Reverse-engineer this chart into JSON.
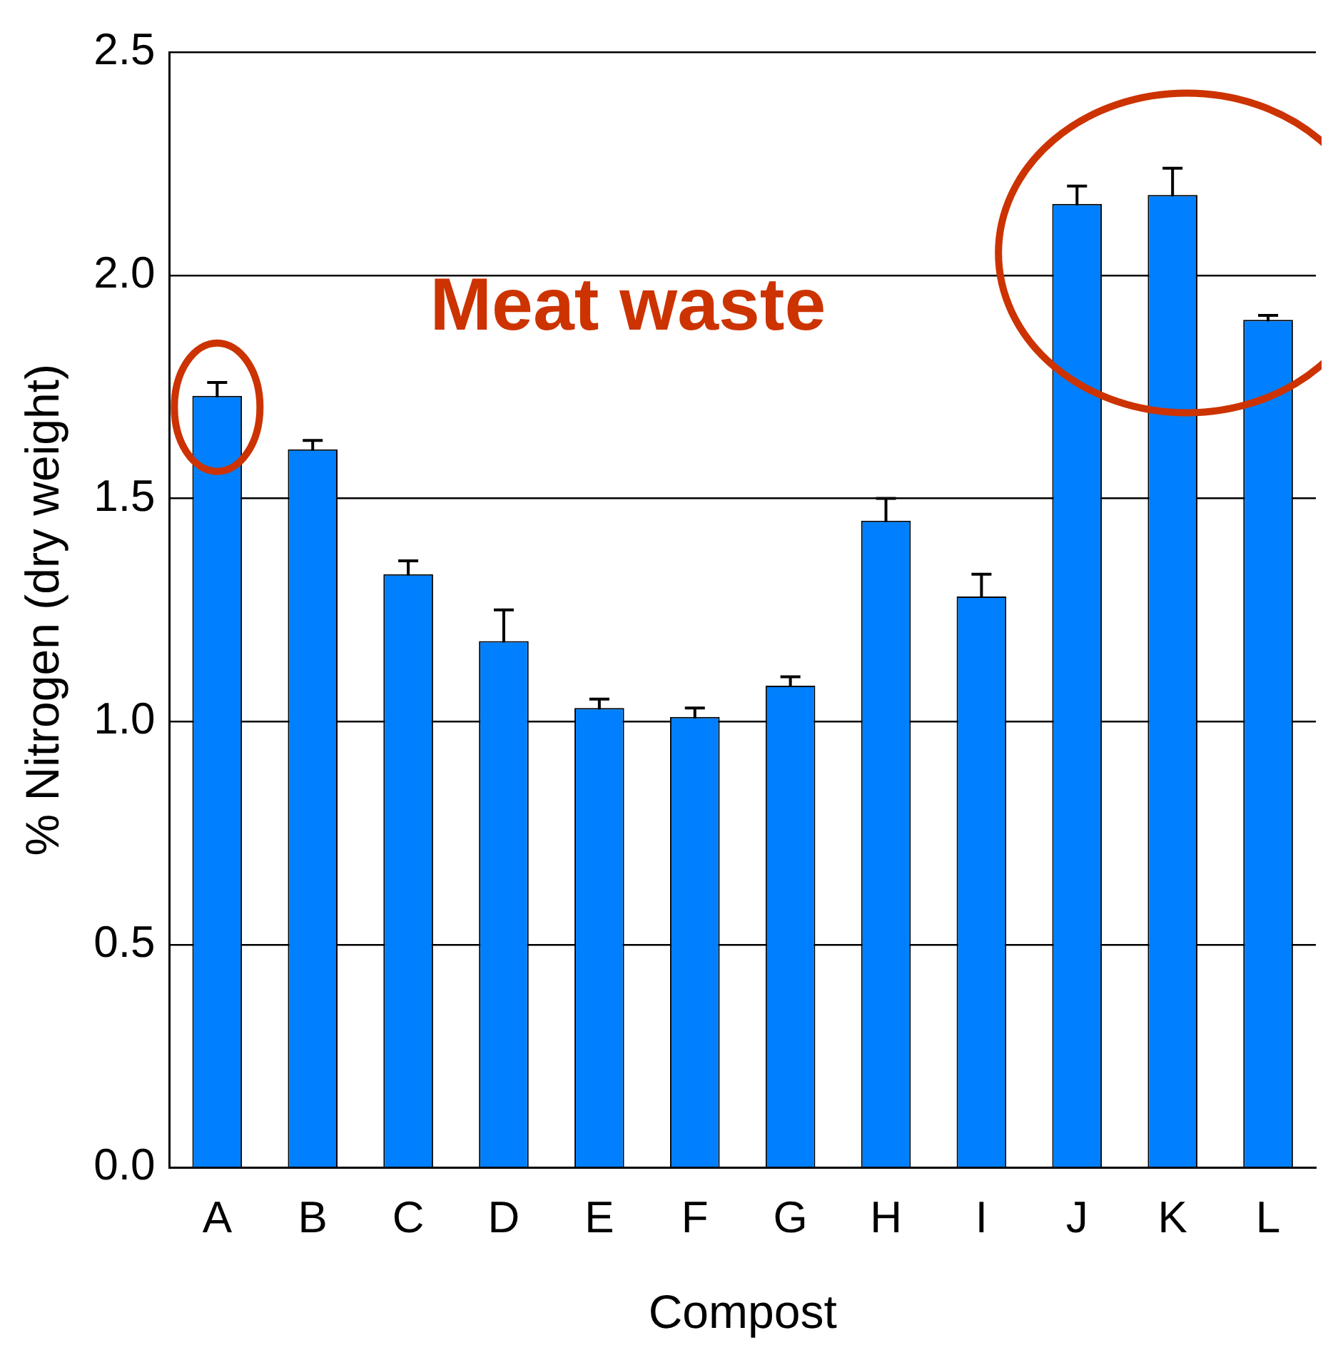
{
  "chart_data": {
    "type": "bar",
    "xlabel": "Compost",
    "ylabel": "% Nitrogen (dry weight)",
    "categories": [
      "A",
      "B",
      "C",
      "D",
      "E",
      "F",
      "G",
      "H",
      "I",
      "J",
      "K",
      "L"
    ],
    "values": [
      1.73,
      1.61,
      1.33,
      1.18,
      1.03,
      1.01,
      1.08,
      1.45,
      1.28,
      2.16,
      2.18,
      1.9
    ],
    "errors": [
      0.03,
      0.02,
      0.03,
      0.07,
      0.02,
      0.02,
      0.02,
      0.05,
      0.05,
      0.04,
      0.06,
      0.01
    ],
    "color": "#0080ff",
    "ylim": [
      0,
      2.5
    ],
    "yticks": [
      {
        "value": 0,
        "label": "0.0"
      },
      {
        "value": 0.5,
        "label": "0.5"
      },
      {
        "value": 1,
        "label": "1.0"
      },
      {
        "value": 1.5,
        "label": "1.5"
      },
      {
        "value": 2,
        "label": "2.0"
      },
      {
        "value": 2.5,
        "label": "2.5"
      }
    ],
    "grid": "y",
    "annotations": [
      "Meat waste"
    ]
  }
}
